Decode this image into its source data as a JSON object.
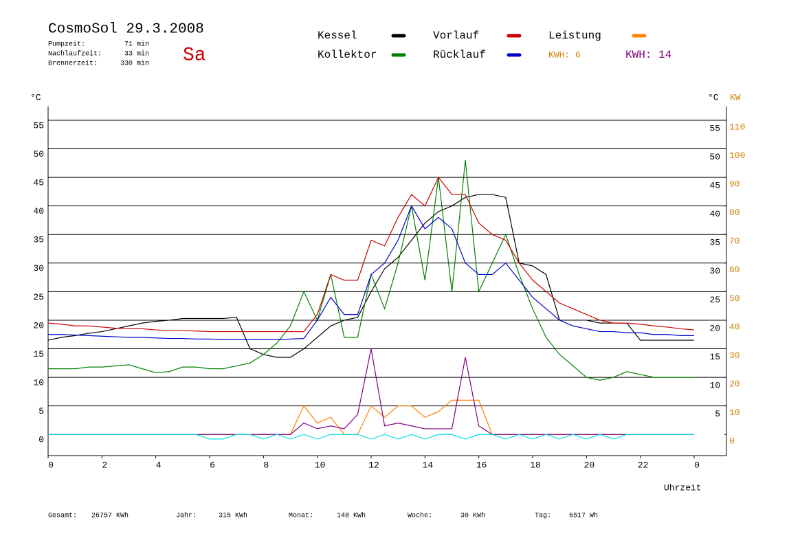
{
  "chart_data": {
    "type": "line",
    "title": "CosmoSol 29.3.2008",
    "day": "Sa",
    "stats": [
      {
        "label": "Pumpzeit:",
        "value": "71 min"
      },
      {
        "label": "Nachlaufzeit:",
        "value": "33 min"
      },
      {
        "label": "Brennerzeit:",
        "value": "330 min"
      }
    ],
    "kwh_orange": "KWH: 6",
    "y_label": "°C",
    "y2_label_celsius": "°C",
    "y2_label": "KW",
    "x_label": "Uhrzeit",
    "footer": [
      {
        "label": "Gesamt:",
        "value": "26757 KWh"
      },
      {
        "label": "Jahr:",
        "value": "315 KWh"
      },
      {
        "label": "Monat:",
        "value": "148 KWh"
      },
      {
        "label": "Woche:",
        "value": "30 KWh"
      },
      {
        "label": "Tag:",
        "value": "6517 Wh"
      }
    ],
    "x": [
      0,
      0.5,
      1,
      1.5,
      2,
      2.5,
      3,
      3.5,
      4,
      4.5,
      5,
      5.5,
      6,
      6.5,
      7,
      7.5,
      8,
      8.5,
      9,
      9.5,
      10,
      10.5,
      11,
      11.5,
      12,
      12.5,
      13,
      13.5,
      14,
      14.5,
      15,
      15.5,
      16,
      16.5,
      17,
      17.5,
      18,
      18.5,
      19,
      19.5,
      20,
      20.5,
      21,
      21.5,
      22,
      22.5,
      23,
      23.5,
      24
    ],
    "xlim": [
      0,
      24
    ],
    "xticks": [
      0,
      2,
      4,
      6,
      8,
      10,
      12,
      14,
      16,
      18,
      20,
      22,
      {
        "value": 24,
        "label": "0"
      }
    ],
    "ylim": [
      -3.7,
      57.4
    ],
    "yticks": [
      0,
      5,
      10,
      15,
      20,
      25,
      30,
      35,
      40,
      45,
      50,
      55
    ],
    "y2lim": [
      -7.4,
      114.8
    ],
    "y2ticks": [
      0,
      10,
      20,
      30,
      40,
      50,
      60,
      70,
      80,
      90,
      100,
      110
    ],
    "grid": true,
    "series": [
      {
        "name": "Kessel",
        "color": "#000000",
        "values": [
          16.5,
          17,
          17.3,
          17.7,
          18,
          18.5,
          19,
          19.5,
          19.8,
          20,
          20.3,
          20.3,
          20.3,
          20.3,
          20.5,
          15,
          14,
          13.5,
          13.5,
          15,
          17,
          19,
          20,
          20.5,
          25,
          29,
          31,
          34,
          37,
          39,
          40,
          41.5,
          42,
          42,
          41.5,
          30,
          29.5,
          28,
          20,
          20,
          20,
          19.5,
          19.5,
          19.5,
          16.5,
          16.5,
          16.5,
          16.5,
          16.5
        ]
      },
      {
        "name": "Kollektor",
        "color": "#007f00",
        "values": [
          11.5,
          11.5,
          11.5,
          11.8,
          11.8,
          12,
          12.2,
          11.5,
          10.8,
          11,
          11.8,
          11.8,
          11.5,
          11.5,
          12,
          12.5,
          14,
          16,
          19,
          25,
          20,
          28,
          17,
          17,
          28,
          22,
          30,
          40,
          27,
          45,
          25,
          48,
          25,
          30,
          35,
          28,
          22,
          17,
          14,
          12,
          10,
          9.5,
          10,
          11,
          10.5,
          10,
          10,
          10,
          10
        ]
      },
      {
        "name": "Vorlauf",
        "color": "#cc0000",
        "values": [
          19.5,
          19.3,
          19,
          19,
          18.8,
          18.6,
          18.5,
          18.5,
          18.3,
          18.2,
          18.2,
          18.1,
          18,
          18,
          18,
          18,
          18,
          18,
          18,
          18,
          21,
          28,
          27,
          27,
          34,
          33,
          38,
          42,
          40,
          45,
          42,
          42,
          37,
          35,
          34,
          30,
          27,
          25,
          23,
          22,
          21,
          20,
          19.5,
          19.5,
          19.3,
          19,
          18.8,
          18.5,
          18.3
        ]
      },
      {
        "name": "Rücklauf",
        "color": "#0000cc",
        "values": [
          17.5,
          17.5,
          17.4,
          17.3,
          17.2,
          17.1,
          17,
          17,
          16.9,
          16.8,
          16.8,
          16.7,
          16.7,
          16.6,
          16.6,
          16.6,
          16.6,
          16.6,
          16.7,
          16.8,
          20,
          24,
          21,
          21,
          28,
          30,
          34,
          40,
          36,
          38,
          36,
          30,
          28,
          28,
          30,
          27,
          24,
          22,
          20,
          19,
          18.5,
          18,
          18,
          17.8,
          17.8,
          17.5,
          17.5,
          17.3,
          17.3
        ]
      },
      {
        "name": "Leistung",
        "color": "#ff8000",
        "axis": "y2",
        "values": [
          0,
          0,
          0,
          0,
          0,
          0,
          0,
          0,
          0,
          0,
          0,
          0,
          0,
          0,
          0,
          0,
          0,
          0,
          0,
          10,
          4,
          6,
          0,
          0,
          10,
          6,
          10,
          10,
          6,
          8,
          12,
          12,
          12,
          0,
          0,
          0,
          0,
          0,
          0,
          0,
          0,
          0,
          0,
          0,
          0,
          0,
          0,
          0,
          0
        ]
      },
      {
        "name": "KWH: 14",
        "color": "#800080",
        "axis": "y2",
        "values": [
          0,
          0,
          0,
          0,
          0,
          0,
          0,
          0,
          0,
          0,
          0,
          0,
          0,
          0,
          0,
          0,
          0,
          0,
          0,
          4,
          2,
          3,
          2,
          7,
          30,
          3,
          4,
          3,
          2,
          2,
          2,
          27,
          3,
          0,
          0,
          0,
          0,
          0,
          0,
          0,
          0,
          0,
          0,
          0,
          0,
          0,
          0,
          0,
          0
        ]
      },
      {
        "color": "#00e0e0",
        "values": [
          0,
          0,
          0,
          0,
          0,
          0,
          0,
          0,
          0,
          0,
          0,
          0,
          -0.8,
          -0.8,
          0,
          0,
          -0.8,
          0,
          -0.8,
          0,
          -0.8,
          0,
          0,
          0,
          -0.8,
          0,
          -0.8,
          0,
          -0.8,
          0,
          0,
          -0.8,
          0,
          0,
          -0.8,
          0,
          -0.8,
          0,
          -0.8,
          0,
          -0.8,
          0,
          -0.8,
          0,
          0,
          0,
          0,
          0,
          0
        ]
      }
    ]
  }
}
